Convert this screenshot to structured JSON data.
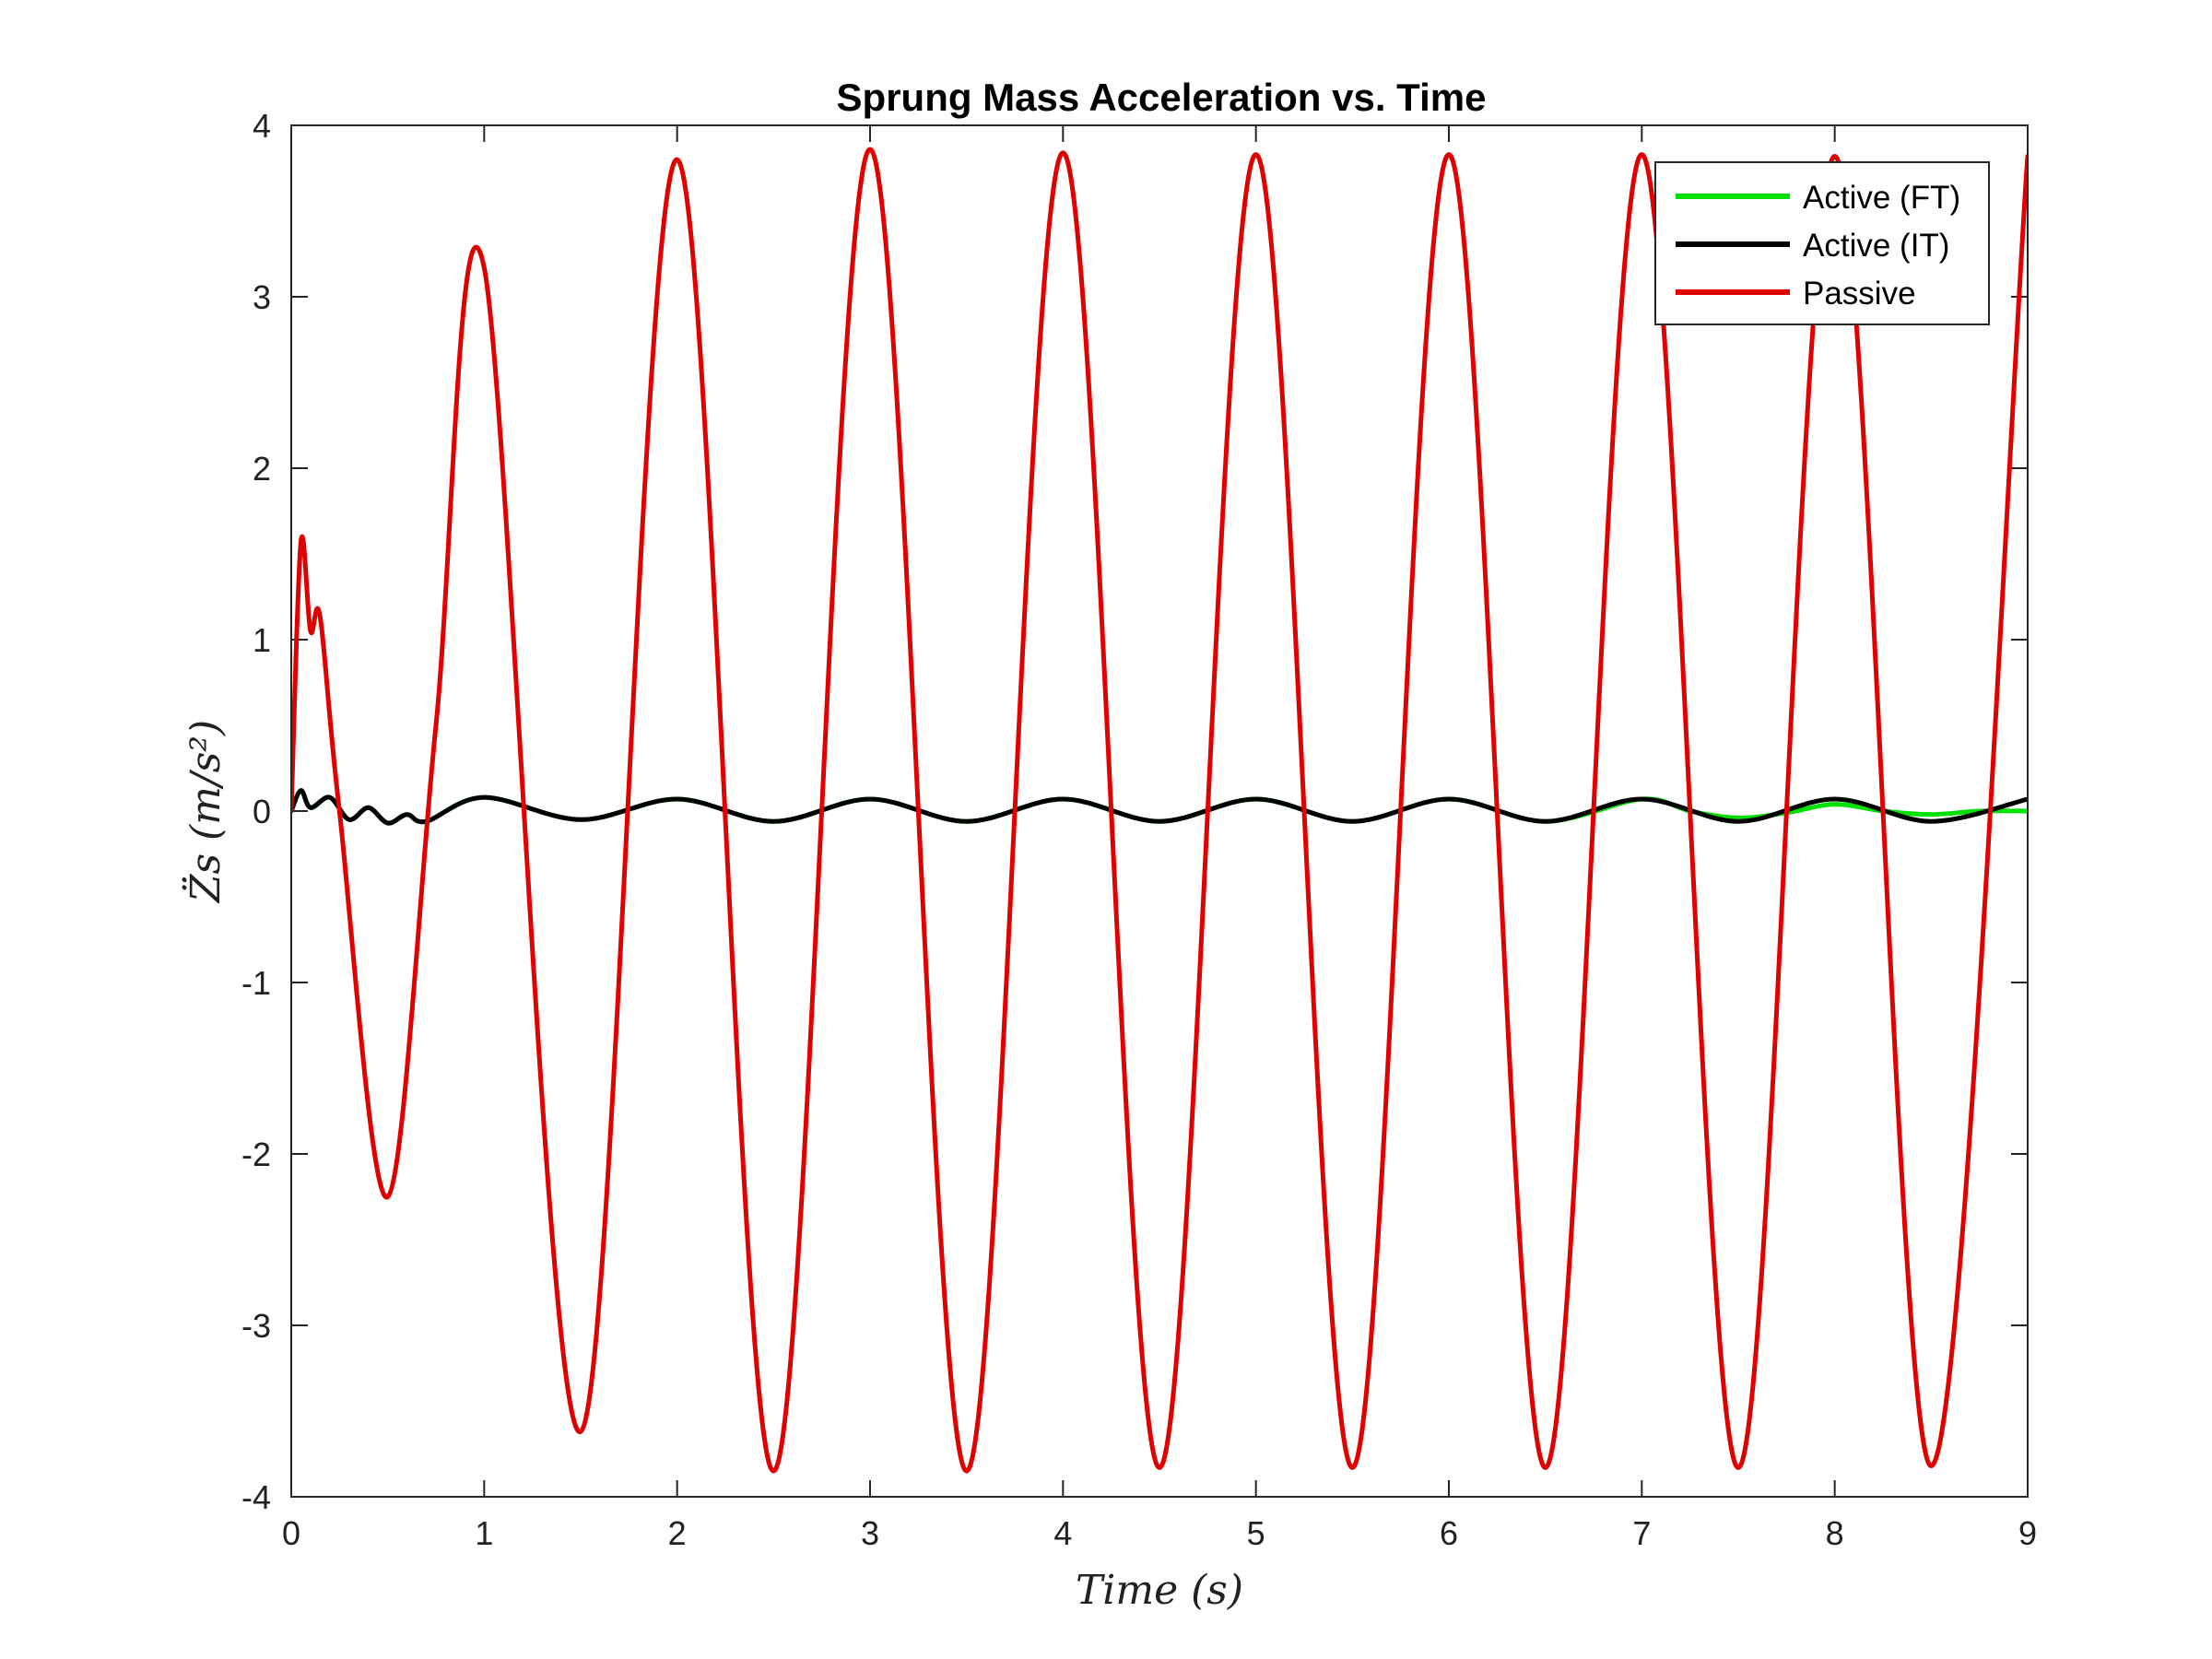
{
  "chart_data": {
    "type": "line",
    "title": "Sprung Mass Acceleration vs. Time",
    "xlabel": "Time (s)",
    "ylabel": "Z̈s (m/s²)",
    "xlim": [
      0,
      9
    ],
    "ylim": [
      -4,
      4
    ],
    "xticks": [
      "0",
      "1",
      "2",
      "3",
      "4",
      "5",
      "6",
      "7",
      "8",
      "9"
    ],
    "yticks": [
      "4",
      "3",
      "2",
      "1",
      "0",
      "-1",
      "-2",
      "-3",
      "-4"
    ],
    "grid": false,
    "legend_position": "top-right",
    "series": [
      {
        "name": "Active (FT)",
        "color": "#00e000",
        "x": [
          0,
          0.05,
          0.1,
          0.2,
          0.3,
          0.4,
          0.5,
          0.6,
          0.7,
          1.0,
          1.5,
          2.0,
          2.5,
          3.0,
          3.5,
          4.0,
          4.5,
          5.0,
          5.5,
          6.0,
          6.5,
          7.0,
          7.25,
          7.5,
          7.75,
          8.0,
          8.25,
          8.5,
          8.75,
          9.0
        ],
        "y": [
          0,
          0.12,
          0.02,
          0.08,
          -0.05,
          0.02,
          -0.07,
          -0.02,
          -0.06,
          0.08,
          -0.05,
          0.07,
          -0.06,
          0.07,
          -0.06,
          0.07,
          -0.06,
          0.07,
          -0.06,
          0.07,
          -0.06,
          0.07,
          0.0,
          -0.04,
          -0.01,
          0.04,
          0.0,
          -0.02,
          0.0,
          0.0
        ]
      },
      {
        "name": "Active (IT)",
        "color": "#000000",
        "x": [
          0,
          0.05,
          0.1,
          0.2,
          0.3,
          0.4,
          0.5,
          0.6,
          0.7,
          1.0,
          1.5,
          2.0,
          2.5,
          3.0,
          3.5,
          4.0,
          4.5,
          5.0,
          5.5,
          6.0,
          6.5,
          7.0,
          7.5,
          8.0,
          8.5,
          9.0
        ],
        "y": [
          0,
          0.12,
          0.02,
          0.08,
          -0.05,
          0.02,
          -0.07,
          -0.02,
          -0.06,
          0.08,
          -0.05,
          0.07,
          -0.06,
          0.07,
          -0.06,
          0.07,
          -0.06,
          0.07,
          -0.06,
          0.07,
          -0.06,
          0.07,
          -0.06,
          0.07,
          -0.06,
          0.07
        ]
      },
      {
        "name": "Passive",
        "color": "#e00000",
        "x": [
          0,
          0.05,
          0.1,
          0.15,
          0.25,
          0.5,
          0.75,
          1.0,
          1.5,
          2.0,
          2.5,
          3.0,
          3.5,
          4.0,
          4.5,
          5.0,
          5.5,
          6.0,
          6.5,
          7.0,
          7.5,
          8.0,
          8.5,
          9.0
        ],
        "y": [
          0,
          1.57,
          1.05,
          1.13,
          0.0,
          -2.25,
          0.5,
          3.17,
          -3.62,
          3.8,
          -3.85,
          3.86,
          -3.85,
          3.84,
          -3.83,
          3.83,
          -3.83,
          3.83,
          -3.83,
          3.83,
          -3.83,
          3.82,
          -3.82,
          3.82
        ]
      }
    ]
  }
}
